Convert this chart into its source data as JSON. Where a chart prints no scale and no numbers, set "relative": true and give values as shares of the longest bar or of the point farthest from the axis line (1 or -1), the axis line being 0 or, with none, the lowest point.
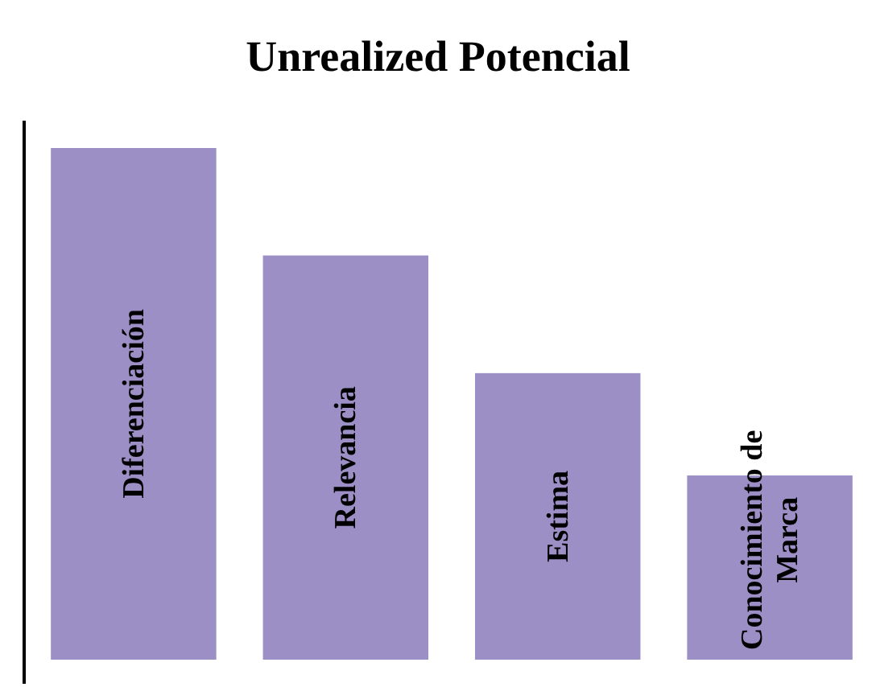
{
  "chart_data": {
    "type": "bar",
    "title": "Unrealized Potencial",
    "relative": true,
    "categories": [
      "Diferenciación",
      "Relevancia",
      "Estima",
      "Conocimiento de Marca"
    ],
    "values": [
      1,
      0.79,
      0.56,
      0.36
    ],
    "color": "#9c8fc6"
  }
}
